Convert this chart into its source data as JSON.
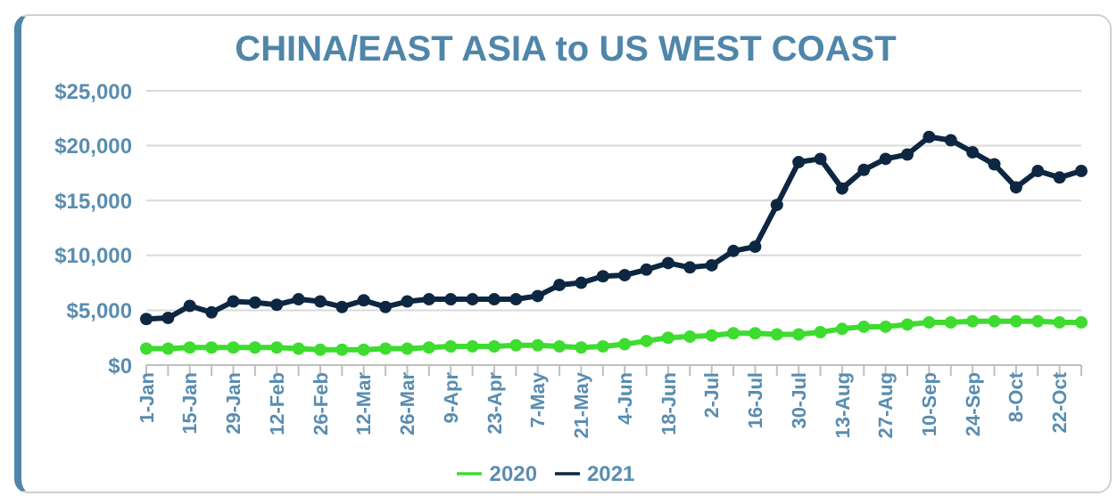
{
  "chart_data": {
    "type": "line",
    "title": "CHINA/EAST ASIA to US WEST COAST",
    "categories": [
      "1-Jan",
      null,
      "15-Jan",
      null,
      "29-Jan",
      null,
      "12-Feb",
      null,
      "26-Feb",
      null,
      "12-Mar",
      null,
      "26-Mar",
      null,
      "9-Apr",
      null,
      "23-Apr",
      null,
      "7-May",
      null,
      "21-May",
      null,
      "4-Jun",
      null,
      "18-Jun",
      null,
      "2-Jul",
      null,
      "16-Jul",
      null,
      "30-Jul",
      null,
      "13-Aug",
      null,
      "27-Aug",
      null,
      "10-Sep",
      null,
      "24-Sep",
      null,
      "8-Oct",
      null,
      "22-Oct",
      null
    ],
    "series": [
      {
        "name": "2020",
        "color": "#3ddc2f",
        "values": [
          1500,
          1500,
          1600,
          1600,
          1600,
          1600,
          1600,
          1500,
          1400,
          1400,
          1400,
          1500,
          1500,
          1600,
          1700,
          1700,
          1700,
          1800,
          1800,
          1700,
          1600,
          1700,
          1900,
          2200,
          2500,
          2600,
          2700,
          2900,
          2900,
          2800,
          2800,
          3000,
          3300,
          3500,
          3500,
          3700,
          3900,
          3900,
          4000,
          4000,
          4000,
          4000,
          3900,
          3900
        ]
      },
      {
        "name": "2021",
        "color": "#0d2742",
        "values": [
          4200,
          4300,
          5400,
          4800,
          5800,
          5700,
          5500,
          6000,
          5800,
          5300,
          5900,
          5300,
          5800,
          6000,
          6000,
          6000,
          6000,
          6000,
          6300,
          7300,
          7500,
          8100,
          8200,
          8700,
          9300,
          8900,
          9100,
          10400,
          10800,
          14600,
          18500,
          18800,
          16100,
          17800,
          18800,
          19200,
          20800,
          20500,
          19400,
          18300,
          16200,
          17700,
          17100,
          17700
        ]
      }
    ],
    "ylim": [
      0,
      25000
    ],
    "yticks": [
      {
        "value": 0,
        "label": "$0"
      },
      {
        "value": 5000,
        "label": "$5,000"
      },
      {
        "value": 10000,
        "label": "$10,000"
      },
      {
        "value": 15000,
        "label": "$15,000"
      },
      {
        "value": 20000,
        "label": "$20,000"
      },
      {
        "value": 25000,
        "label": "$25,000"
      }
    ],
    "grid": "y",
    "legend": "bottom",
    "marker": "circle",
    "line_style": "solid"
  }
}
